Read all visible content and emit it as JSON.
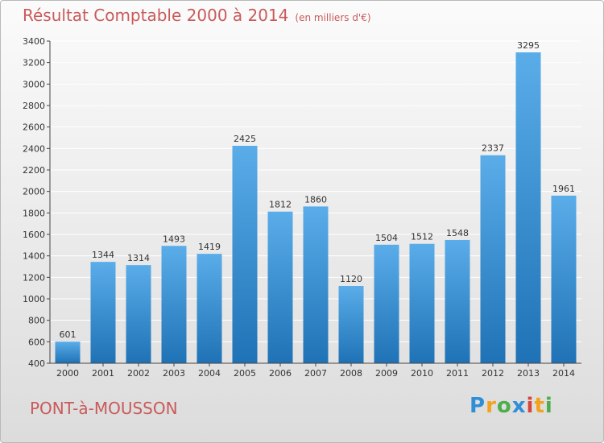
{
  "header": {
    "title": "Résultat Comptable 2000 à 2014",
    "unit": "(en milliers d'€)"
  },
  "footer": {
    "city": "PONT-à-MOUSSON",
    "logo_letters": [
      "P",
      "r",
      "o",
      "x",
      "i",
      "t",
      "i"
    ]
  },
  "colors": {
    "bar_top": "#5aade9",
    "bar_bottom": "#1f72b5",
    "title": "#c95a5a",
    "grid": "#ffffff"
  },
  "chart_data": {
    "type": "bar",
    "title": "Résultat Comptable 2000 à 2014",
    "xlabel": "",
    "ylabel": "",
    "categories": [
      "2000",
      "2001",
      "2002",
      "2003",
      "2004",
      "2005",
      "2006",
      "2007",
      "2008",
      "2009",
      "2010",
      "2011",
      "2012",
      "2013",
      "2014"
    ],
    "values": [
      601,
      1344,
      1314,
      1493,
      1419,
      2425,
      1812,
      1860,
      1120,
      1504,
      1512,
      1548,
      2337,
      3295,
      1961
    ],
    "ylim": [
      400,
      3400
    ],
    "yticks": [
      400,
      600,
      800,
      1000,
      1200,
      1400,
      1600,
      1800,
      2000,
      2200,
      2400,
      2600,
      2800,
      3000,
      3200,
      3400
    ],
    "grid": true
  }
}
